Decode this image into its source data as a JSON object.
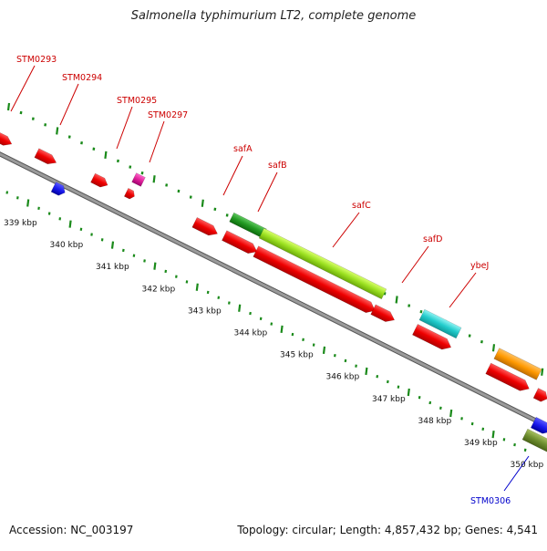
{
  "title": "Salmonella typhimurium LT2, complete genome",
  "footer": {
    "accession": "Accession: NC_003197",
    "summary": "Topology: circular; Length: 4,857,432 bp; Genes: 4,541"
  },
  "colors": {
    "backbone": "#8c8c8c",
    "label_forward": "#cc0000",
    "label_reverse": "#0000cc",
    "tick": "#1a8a1a"
  },
  "kbp_labels": [
    "339 kbp",
    "340 kbp",
    "341 kbp",
    "342 kbp",
    "343 kbp",
    "344 kbp",
    "345 kbp",
    "346 kbp",
    "347 kbp",
    "348 kbp",
    "349 kbp",
    "350 kbp"
  ],
  "gene_labels": [
    {
      "text": "STM0293",
      "strand": "forward"
    },
    {
      "text": "STM0294",
      "strand": "forward"
    },
    {
      "text": "STM0295",
      "strand": "forward"
    },
    {
      "text": "STM0297",
      "strand": "forward"
    },
    {
      "text": "safA",
      "strand": "forward"
    },
    {
      "text": "safB",
      "strand": "forward"
    },
    {
      "text": "safC",
      "strand": "forward"
    },
    {
      "text": "safD",
      "strand": "forward"
    },
    {
      "text": "ybeJ",
      "strand": "forward"
    },
    {
      "text": "STM0306",
      "strand": "reverse"
    }
  ]
}
